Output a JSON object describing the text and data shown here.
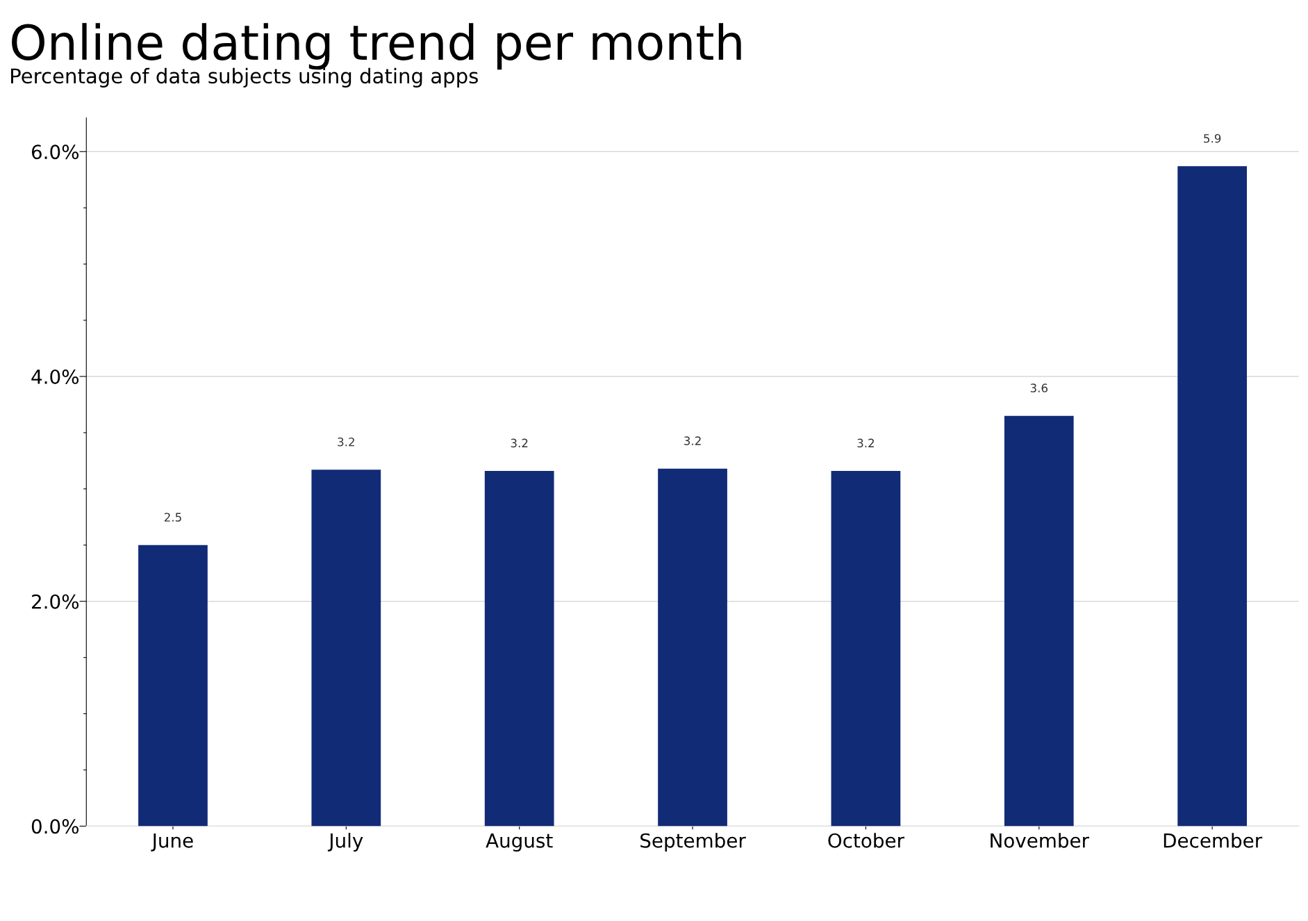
{
  "chart_data": {
    "type": "bar",
    "title": "Online dating trend per month",
    "subtitle": "Percentage of data subjects using dating apps",
    "categories": [
      "June",
      "July",
      "August",
      "September",
      "October",
      "November",
      "December"
    ],
    "values": [
      2.5,
      3.17,
      3.16,
      3.18,
      3.16,
      3.65,
      5.87
    ],
    "value_labels": [
      "2.5",
      "3.2",
      "3.2",
      "3.2",
      "3.2",
      "3.6",
      "5.9"
    ],
    "color": "#122b77",
    "ylim": [
      0,
      6.3
    ],
    "yticks": [
      {
        "value": 0,
        "label": "0.0%"
      },
      {
        "value": 0.5,
        "label": null
      },
      {
        "value": 1,
        "label": null
      },
      {
        "value": 1.5,
        "label": null
      },
      {
        "value": 2,
        "label": "2.0%"
      },
      {
        "value": 2.5,
        "label": null
      },
      {
        "value": 3,
        "label": null
      },
      {
        "value": 3.5,
        "label": null
      },
      {
        "value": 4,
        "label": "4.0%"
      },
      {
        "value": 4.5,
        "label": null
      },
      {
        "value": 5,
        "label": null
      },
      {
        "value": 5.5,
        "label": null
      },
      {
        "value": 6,
        "label": "6.0%"
      }
    ],
    "grid": "y"
  }
}
